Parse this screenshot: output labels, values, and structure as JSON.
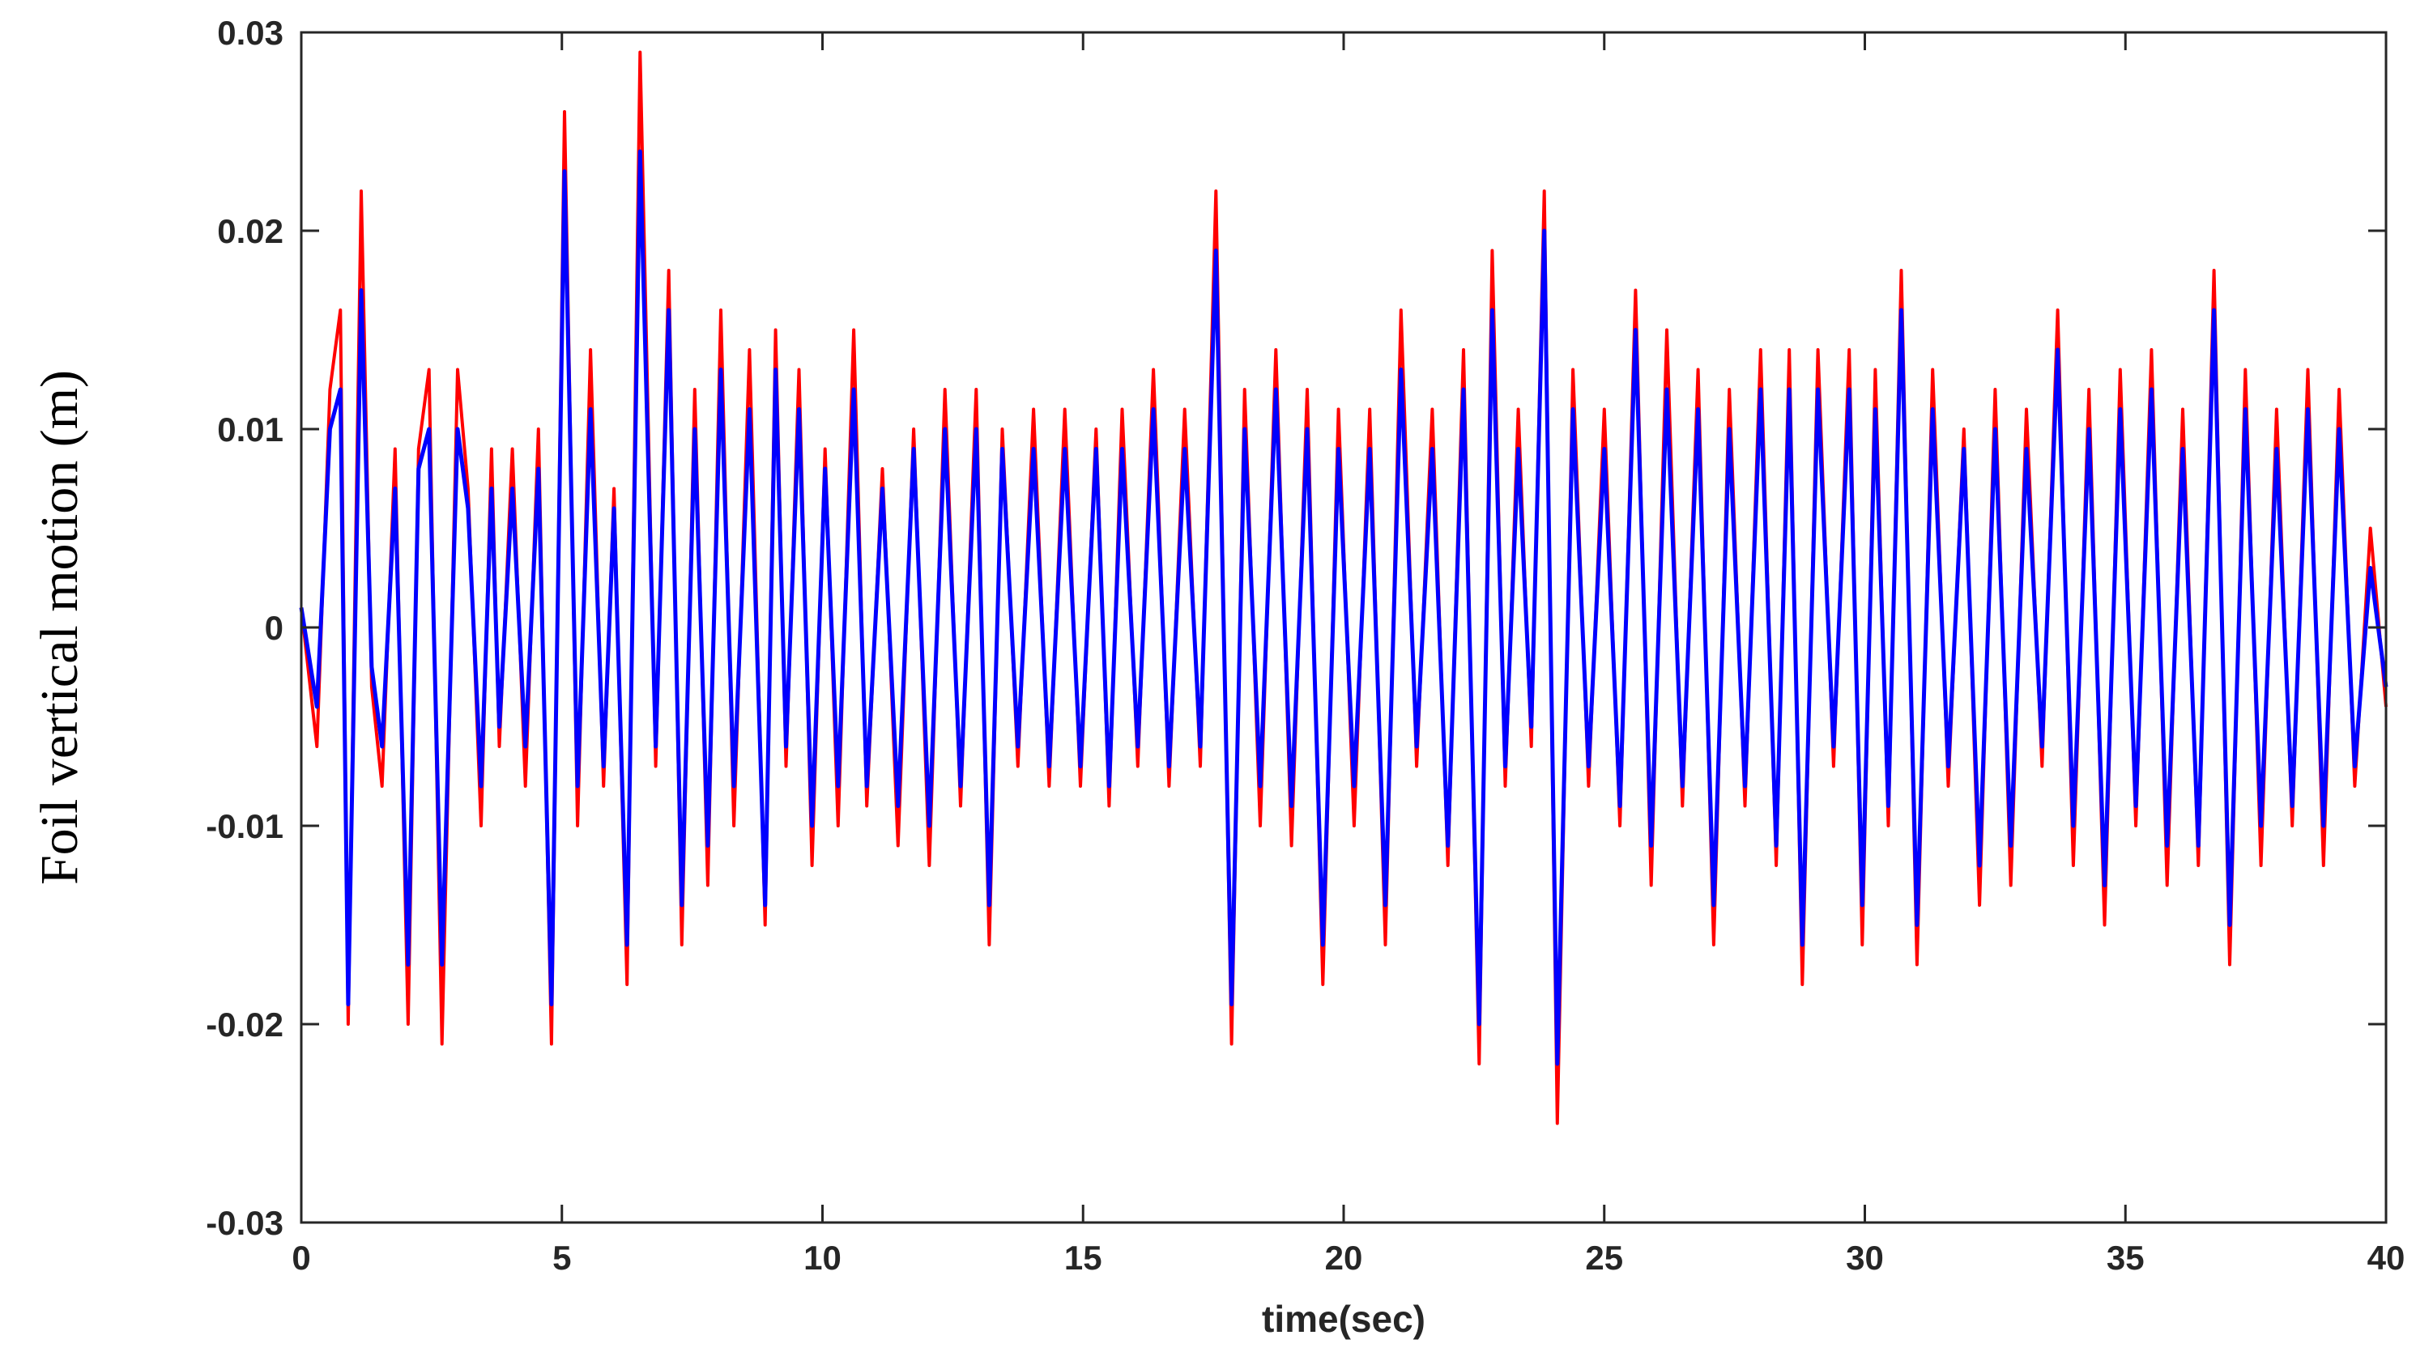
{
  "chart_data": {
    "type": "line",
    "xlabel": "time(sec)",
    "ylabel": "Foil vertical motion (m)",
    "xlim": [
      0,
      40
    ],
    "ylim": [
      -0.03,
      0.03
    ],
    "xticks": [
      0,
      5,
      10,
      15,
      20,
      25,
      30,
      35,
      40
    ],
    "xtick_labels": [
      "0",
      "5",
      "10",
      "15",
      "20",
      "25",
      "30",
      "35",
      "40"
    ],
    "yticks": [
      -0.03,
      -0.02,
      -0.01,
      0,
      0.01,
      0.02,
      0.03
    ],
    "ytick_labels": [
      "-0.03",
      "-0.02",
      "-0.01",
      "0",
      "0.01",
      "0.02",
      "0.03"
    ],
    "grid": false,
    "box": true,
    "series": [
      {
        "color": "#ff0000",
        "x": [
          0,
          0.3,
          0.55,
          0.75,
          0.9,
          1.15,
          1.35,
          1.55,
          1.8,
          2.05,
          2.25,
          2.45,
          2.7,
          3.0,
          3.2,
          3.45,
          3.65,
          3.8,
          4.05,
          4.3,
          4.55,
          4.8,
          5.05,
          5.3,
          5.55,
          5.8,
          6.0,
          6.25,
          6.5,
          6.8,
          7.05,
          7.3,
          7.55,
          7.8,
          8.05,
          8.3,
          8.6,
          8.9,
          9.1,
          9.3,
          9.55,
          9.8,
          10.05,
          10.3,
          10.6,
          10.85,
          11.15,
          11.45,
          11.75,
          12.05,
          12.35,
          12.65,
          12.95,
          13.2,
          13.45,
          13.75,
          14.05,
          14.35,
          14.65,
          14.95,
          15.25,
          15.5,
          15.75,
          16.05,
          16.35,
          16.65,
          16.95,
          17.25,
          17.55,
          17.85,
          18.1,
          18.4,
          18.7,
          19.0,
          19.3,
          19.6,
          19.9,
          20.2,
          20.5,
          20.8,
          21.1,
          21.4,
          21.7,
          22.0,
          22.3,
          22.6,
          22.85,
          23.1,
          23.35,
          23.6,
          23.85,
          24.1,
          24.4,
          24.7,
          25.0,
          25.3,
          25.6,
          25.9,
          26.2,
          26.5,
          26.8,
          27.1,
          27.4,
          27.7,
          28.0,
          28.3,
          28.55,
          28.8,
          29.1,
          29.4,
          29.7,
          29.95,
          30.2,
          30.45,
          30.7,
          31.0,
          31.3,
          31.6,
          31.9,
          32.2,
          32.5,
          32.8,
          33.1,
          33.4,
          33.7,
          34.0,
          34.3,
          34.6,
          34.9,
          35.2,
          35.5,
          35.8,
          36.1,
          36.4,
          36.7,
          37.0,
          37.3,
          37.6,
          37.9,
          38.2,
          38.5,
          38.8,
          39.1,
          39.4,
          39.7,
          40.0
        ],
        "values": [
          0.001,
          -0.006,
          0.012,
          0.016,
          -0.02,
          0.022,
          -0.003,
          -0.008,
          0.009,
          -0.02,
          0.009,
          0.013,
          -0.021,
          0.013,
          0.007,
          -0.01,
          0.009,
          -0.006,
          0.009,
          -0.008,
          0.01,
          -0.021,
          0.026,
          -0.01,
          0.014,
          -0.008,
          0.007,
          -0.018,
          0.029,
          -0.007,
          0.018,
          -0.016,
          0.012,
          -0.013,
          0.016,
          -0.01,
          0.014,
          -0.015,
          0.015,
          -0.007,
          0.013,
          -0.012,
          0.009,
          -0.01,
          0.015,
          -0.009,
          0.008,
          -0.011,
          0.01,
          -0.012,
          0.012,
          -0.009,
          0.012,
          -0.016,
          0.01,
          -0.007,
          0.011,
          -0.008,
          0.011,
          -0.008,
          0.01,
          -0.009,
          0.011,
          -0.007,
          0.013,
          -0.008,
          0.011,
          -0.007,
          0.022,
          -0.021,
          0.012,
          -0.01,
          0.014,
          -0.011,
          0.012,
          -0.018,
          0.011,
          -0.01,
          0.011,
          -0.016,
          0.016,
          -0.007,
          0.011,
          -0.012,
          0.014,
          -0.022,
          0.019,
          -0.008,
          0.011,
          -0.006,
          0.022,
          -0.025,
          0.013,
          -0.008,
          0.011,
          -0.01,
          0.017,
          -0.013,
          0.015,
          -0.009,
          0.013,
          -0.016,
          0.012,
          -0.009,
          0.014,
          -0.012,
          0.014,
          -0.018,
          0.014,
          -0.007,
          0.014,
          -0.016,
          0.013,
          -0.01,
          0.018,
          -0.017,
          0.013,
          -0.008,
          0.01,
          -0.014,
          0.012,
          -0.013,
          0.011,
          -0.007,
          0.016,
          -0.012,
          0.012,
          -0.015,
          0.013,
          -0.01,
          0.014,
          -0.013,
          0.011,
          -0.012,
          0.018,
          -0.017,
          0.013,
          -0.012,
          0.011,
          -0.01,
          0.013,
          -0.012,
          0.012,
          -0.008,
          0.005,
          -0.004
        ]
      },
      {
        "color": "#0000ff",
        "x": [
          0,
          0.3,
          0.55,
          0.75,
          0.9,
          1.15,
          1.35,
          1.55,
          1.8,
          2.05,
          2.25,
          2.45,
          2.7,
          3.0,
          3.2,
          3.45,
          3.65,
          3.8,
          4.05,
          4.3,
          4.55,
          4.8,
          5.05,
          5.3,
          5.55,
          5.8,
          6.0,
          6.25,
          6.5,
          6.8,
          7.05,
          7.3,
          7.55,
          7.8,
          8.05,
          8.3,
          8.6,
          8.9,
          9.1,
          9.3,
          9.55,
          9.8,
          10.05,
          10.3,
          10.6,
          10.85,
          11.15,
          11.45,
          11.75,
          12.05,
          12.35,
          12.65,
          12.95,
          13.2,
          13.45,
          13.75,
          14.05,
          14.35,
          14.65,
          14.95,
          15.25,
          15.5,
          15.75,
          16.05,
          16.35,
          16.65,
          16.95,
          17.25,
          17.55,
          17.85,
          18.1,
          18.4,
          18.7,
          19.0,
          19.3,
          19.6,
          19.9,
          20.2,
          20.5,
          20.8,
          21.1,
          21.4,
          21.7,
          22.0,
          22.3,
          22.6,
          22.85,
          23.1,
          23.35,
          23.6,
          23.85,
          24.1,
          24.4,
          24.7,
          25.0,
          25.3,
          25.6,
          25.9,
          26.2,
          26.5,
          26.8,
          27.1,
          27.4,
          27.7,
          28.0,
          28.3,
          28.55,
          28.8,
          29.1,
          29.4,
          29.7,
          29.95,
          30.2,
          30.45,
          30.7,
          31.0,
          31.3,
          31.6,
          31.9,
          32.2,
          32.5,
          32.8,
          33.1,
          33.4,
          33.7,
          34.0,
          34.3,
          34.6,
          34.9,
          35.2,
          35.5,
          35.8,
          36.1,
          36.4,
          36.7,
          37.0,
          37.3,
          37.6,
          37.9,
          38.2,
          38.5,
          38.8,
          39.1,
          39.4,
          39.7,
          40.0
        ],
        "values": [
          0.001,
          -0.004,
          0.01,
          0.012,
          -0.019,
          0.017,
          -0.002,
          -0.006,
          0.007,
          -0.017,
          0.008,
          0.01,
          -0.017,
          0.01,
          0.006,
          -0.008,
          0.007,
          -0.005,
          0.007,
          -0.006,
          0.008,
          -0.019,
          0.023,
          -0.008,
          0.011,
          -0.007,
          0.006,
          -0.016,
          0.024,
          -0.006,
          0.016,
          -0.014,
          0.01,
          -0.011,
          0.013,
          -0.008,
          0.011,
          -0.014,
          0.013,
          -0.006,
          0.011,
          -0.01,
          0.008,
          -0.008,
          0.012,
          -0.008,
          0.007,
          -0.009,
          0.009,
          -0.01,
          0.01,
          -0.008,
          0.01,
          -0.014,
          0.009,
          -0.006,
          0.009,
          -0.007,
          0.009,
          -0.007,
          0.009,
          -0.008,
          0.009,
          -0.006,
          0.011,
          -0.007,
          0.009,
          -0.006,
          0.019,
          -0.019,
          0.01,
          -0.008,
          0.012,
          -0.009,
          0.01,
          -0.016,
          0.009,
          -0.008,
          0.009,
          -0.014,
          0.013,
          -0.006,
          0.009,
          -0.011,
          0.012,
          -0.02,
          0.016,
          -0.007,
          0.009,
          -0.005,
          0.02,
          -0.022,
          0.011,
          -0.007,
          0.009,
          -0.009,
          0.015,
          -0.011,
          0.012,
          -0.008,
          0.011,
          -0.014,
          0.01,
          -0.008,
          0.012,
          -0.011,
          0.012,
          -0.016,
          0.012,
          -0.006,
          0.012,
          -0.014,
          0.011,
          -0.009,
          0.016,
          -0.015,
          0.011,
          -0.007,
          0.009,
          -0.012,
          0.01,
          -0.011,
          0.009,
          -0.006,
          0.014,
          -0.01,
          0.01,
          -0.013,
          0.011,
          -0.009,
          0.012,
          -0.011,
          0.009,
          -0.011,
          0.016,
          -0.015,
          0.011,
          -0.01,
          0.009,
          -0.009,
          0.011,
          -0.01,
          0.01,
          -0.007,
          0.003,
          -0.003
        ]
      }
    ]
  }
}
